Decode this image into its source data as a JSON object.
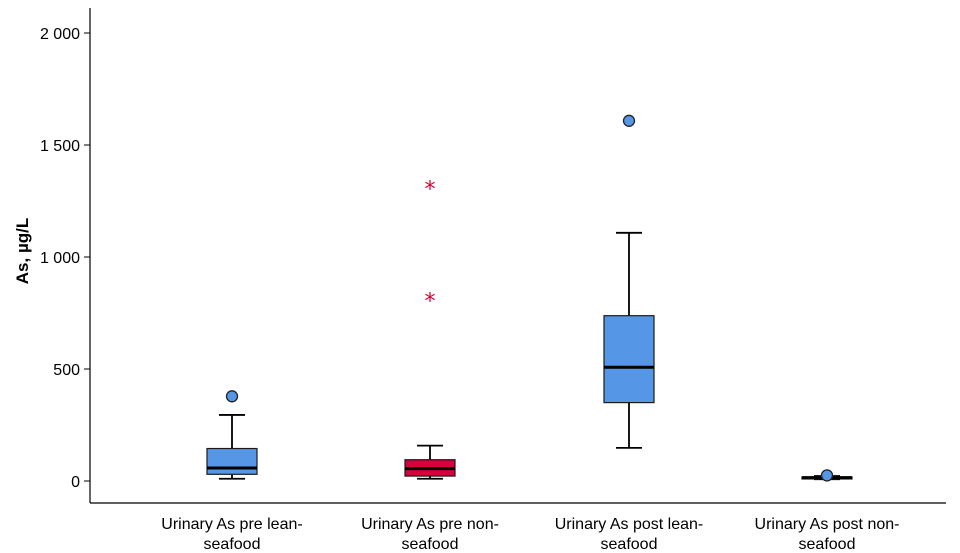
{
  "chart_data": {
    "type": "boxplot",
    "title": "",
    "xlabel": "",
    "ylabel": "As, µg/L",
    "ylim": [
      -47,
      2100
    ],
    "yticks": [
      0,
      500,
      1000,
      1500,
      2000
    ],
    "ytick_labels": [
      "0",
      "500",
      "1 000",
      "1 500",
      "2 000"
    ],
    "grid": false,
    "legend": "none",
    "categories": [
      {
        "line1": "Urinary As pre lean-",
        "line2": "seafood"
      },
      {
        "line1": "Urinary As pre non-",
        "line2": "seafood"
      },
      {
        "line1": "Urinary As post lean-",
        "line2": "seafood"
      },
      {
        "line1": "Urinary As post non-",
        "line2": "seafood"
      }
    ],
    "boxes": [
      {
        "whisker_low": 10,
        "q1": 30,
        "median": 58,
        "q3": 145,
        "whisker_high": 295,
        "outliers": [
          378
        ],
        "extremes": [],
        "color": "#5596e6"
      },
      {
        "whisker_low": 10,
        "q1": 22,
        "median": 55,
        "q3": 95,
        "whisker_high": 158,
        "outliers": [],
        "extremes": [
          810,
          1310
        ],
        "color": "#d6003c"
      },
      {
        "whisker_low": 148,
        "q1": 350,
        "median": 508,
        "q3": 738,
        "whisker_high": 1108,
        "outliers": [
          1608
        ],
        "extremes": [],
        "color": "#5596e6"
      },
      {
        "whisker_low": 8,
        "q1": 12,
        "median": 15,
        "q3": 18,
        "whisker_high": 22,
        "outliers": [
          25
        ],
        "extremes": [],
        "color": "#5596e6"
      }
    ]
  }
}
